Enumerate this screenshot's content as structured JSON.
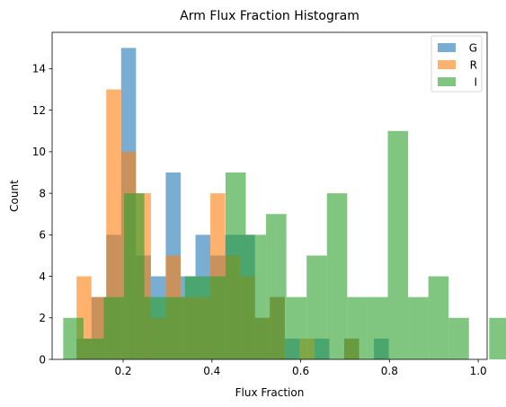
{
  "chart_data": {
    "type": "histogram",
    "title": "Arm Flux Fraction Histogram",
    "xlabel": "Flux Fraction",
    "ylabel": "Count",
    "xlim": [
      0.04,
      1.02
    ],
    "ylim": [
      0,
      15.75
    ],
    "xticks": [
      0.2,
      0.4,
      0.6,
      0.8,
      1.0
    ],
    "xtick_labels": [
      "0.2",
      "0.4",
      "0.6",
      "0.8",
      "1.0"
    ],
    "yticks": [
      0,
      2,
      4,
      6,
      8,
      10,
      12,
      14
    ],
    "ytick_labels": [
      "0",
      "2",
      "4",
      "6",
      "8",
      "10",
      "12",
      "14"
    ],
    "grid": false,
    "legend_position": "top-right",
    "opacity": 0.6,
    "series": [
      {
        "name": "G",
        "color": "#1f77b4",
        "bin_start": 0.095,
        "bin_width": 0.0335,
        "counts": [
          1,
          3,
          6,
          15,
          5,
          4,
          9,
          4,
          6,
          5,
          6,
          6,
          2,
          3,
          1,
          0,
          1,
          0,
          1,
          0,
          1
        ]
      },
      {
        "name": "R",
        "color": "#ff7f0e",
        "bin_start": 0.095,
        "bin_width": 0.0335,
        "counts": [
          4,
          3,
          13,
          10,
          8,
          2,
          5,
          3,
          3,
          8,
          5,
          4,
          2,
          3,
          0,
          1,
          0,
          0,
          1,
          0,
          0
        ]
      },
      {
        "name": "I",
        "color": "#2ca02c",
        "bin_start": 0.065,
        "bin_width": 0.0457,
        "counts": [
          2,
          1,
          3,
          8,
          3,
          3,
          4,
          4,
          9,
          6,
          7,
          3,
          5,
          8,
          3,
          3,
          11,
          3,
          4,
          2,
          0,
          2
        ]
      }
    ]
  }
}
